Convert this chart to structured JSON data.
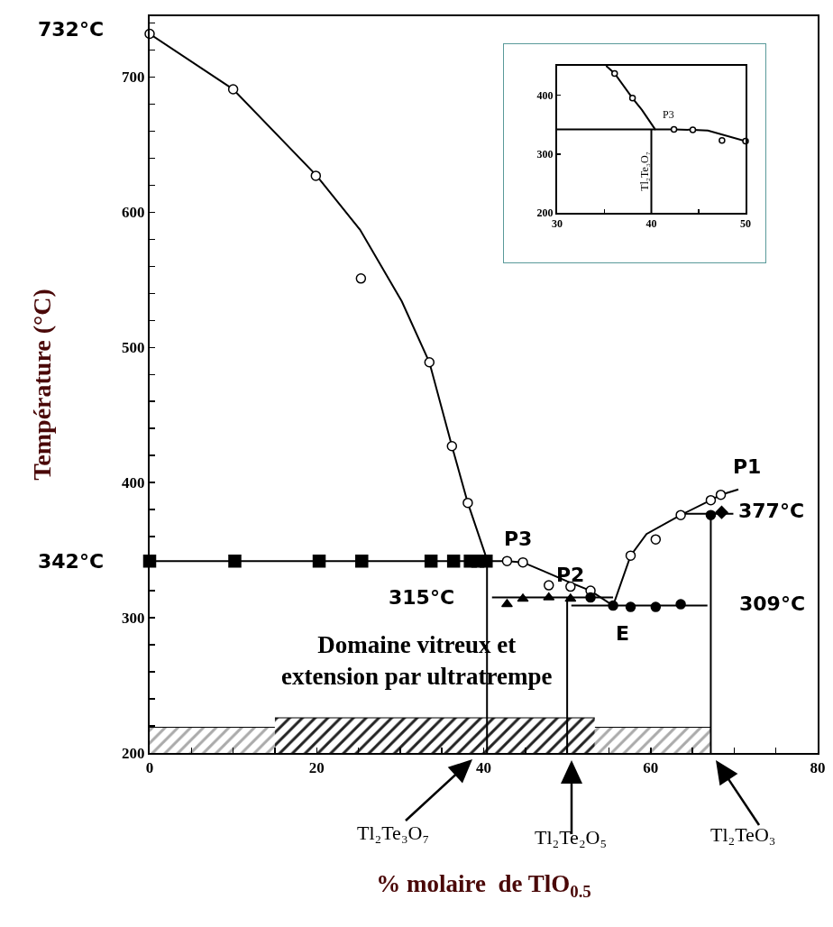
{
  "chart_data": [
    {
      "type": "line",
      "xlabel": "% molaire  de TlO$_{0.5}$",
      "ylabel": "Température (°C)",
      "xlim": [
        0,
        80
      ],
      "ylim": [
        200,
        745
      ],
      "xticks": [
        0,
        {
          "value": 5,
          "label": null
        },
        {
          "value": 10,
          "label": null
        },
        {
          "value": 15,
          "label": null
        },
        20,
        {
          "value": 25,
          "label": null
        },
        {
          "value": 30,
          "label": null
        },
        {
          "value": 35,
          "label": null
        },
        40,
        {
          "value": 45,
          "label": null
        },
        {
          "value": 50,
          "label": null
        },
        {
          "value": 55,
          "label": null
        },
        60,
        {
          "value": 65,
          "label": null
        },
        {
          "value": 70,
          "label": null
        },
        {
          "value": 75,
          "label": null
        },
        80
      ],
      "yticks": [
        200,
        {
          "value": 220,
          "label": null
        },
        {
          "value": 240,
          "label": null
        },
        {
          "value": 260,
          "label": null
        },
        {
          "value": 280,
          "label": null
        },
        300,
        {
          "value": 320,
          "label": null
        },
        {
          "value": 340,
          "label": null
        },
        {
          "value": 360,
          "label": null
        },
        {
          "value": 380,
          "label": null
        },
        400,
        {
          "value": 420,
          "label": null
        },
        {
          "value": 440,
          "label": null
        },
        {
          "value": 460,
          "label": null
        },
        {
          "value": 480,
          "label": null
        },
        500,
        {
          "value": 520,
          "label": null
        },
        {
          "value": 540,
          "label": null
        },
        {
          "value": 560,
          "label": null
        },
        {
          "value": 580,
          "label": null
        },
        600,
        {
          "value": 620,
          "label": null
        },
        {
          "value": 640,
          "label": null
        },
        {
          "value": 660,
          "label": null
        },
        {
          "value": 680,
          "label": null
        },
        700,
        {
          "value": 720,
          "label": null
        },
        {
          "value": 740,
          "label": null
        }
      ],
      "grid": false,
      "series": [
        {
          "type": "area",
          "color": "#aaaaaa",
          "x": [
            0,
            15
          ],
          "values": [
            219,
            219
          ]
        },
        {
          "type": "area",
          "color": "#aaaaaa",
          "x": [
            53.3,
            67.2
          ],
          "values": [
            219,
            219
          ]
        },
        {
          "type": "area",
          "color": "#222222",
          "x": [
            15,
            53.3
          ],
          "values": [
            226,
            226
          ]
        },
        {
          "type": "line",
          "color": "#000000",
          "marker": "none",
          "x": [
            0,
            10,
            20,
            25.2,
            30.2,
            33.5,
            36.2,
            38.1,
            40.4
          ],
          "values": [
            732,
            691,
            627,
            587,
            534,
            489,
            427,
            385,
            343
          ]
        },
        {
          "type": "line",
          "color": "#000000",
          "marker": "none",
          "x": [
            0,
            40.4
          ],
          "values": [
            342,
            342
          ]
        },
        {
          "type": "line",
          "color": "#000000",
          "marker": "none",
          "x": [
            40.4,
            42.8,
            44.7,
            47,
            50,
            52.8,
            55.5
          ],
          "values": [
            342,
            342,
            341,
            335,
            327,
            320,
            309
          ]
        },
        {
          "type": "line",
          "color": "#000000",
          "marker": "none",
          "x": [
            55.5,
            57.6,
            59.5,
            63.6,
            67.2,
            68.4,
            70.5
          ],
          "values": [
            309,
            346,
            362,
            376,
            387,
            391,
            395
          ]
        },
        {
          "type": "line",
          "color": "#000000",
          "marker": "none",
          "x": [
            41,
            55.5
          ],
          "values": [
            315,
            315
          ]
        },
        {
          "type": "line",
          "color": "#000000",
          "marker": "none",
          "x": [
            50.5,
            66.8
          ],
          "values": [
            309,
            309
          ]
        },
        {
          "type": "line",
          "color": "#000000",
          "marker": "none",
          "x": [
            63.4,
            69.9
          ],
          "values": [
            377,
            377
          ]
        },
        {
          "type": "line",
          "color": "#000000",
          "marker": "none",
          "x": [
            40.4,
            40.4
          ],
          "values": [
            342,
            200
          ]
        },
        {
          "type": "line",
          "color": "#000000",
          "marker": "none",
          "x": [
            50,
            50
          ],
          "values": [
            315,
            200
          ]
        },
        {
          "type": "line",
          "color": "#000000",
          "marker": "none",
          "x": [
            67.2,
            67.2
          ],
          "values": [
            377,
            200
          ]
        },
        {
          "type": "scatter",
          "color": "#ffffff",
          "marker": "circle",
          "x": [
            0,
            10,
            19.9,
            25.3,
            33.5,
            36.2,
            38.1
          ],
          "values": [
            732,
            691,
            627,
            551,
            489,
            427,
            385
          ]
        },
        {
          "type": "scatter",
          "color": "#000000",
          "marker": "square",
          "x": [
            0,
            10.2,
            20.3,
            25.4,
            33.7,
            36.4,
            38.4,
            39.3,
            40.3
          ],
          "values": [
            342,
            342,
            342,
            342,
            342,
            342,
            342,
            342,
            342
          ]
        },
        {
          "type": "scatter",
          "color": "#ffffff",
          "marker": "circle",
          "x": [
            42.8,
            44.7,
            47.8,
            50.4,
            52.8
          ],
          "values": [
            342,
            341,
            324,
            323,
            320
          ]
        },
        {
          "type": "scatter",
          "color": "#ffffff",
          "marker": "circle",
          "x": [
            57.6,
            60.6,
            63.6,
            67.2,
            68.4
          ],
          "values": [
            346,
            358,
            376,
            387,
            391
          ]
        },
        {
          "type": "scatter",
          "color": "#000000",
          "marker": "triangle",
          "x": [
            42.8,
            44.7,
            47.8,
            50.4
          ],
          "values": [
            310,
            314,
            315,
            314
          ]
        },
        {
          "type": "scatter",
          "color": "#000000",
          "marker": "circle",
          "x": [
            52.8,
            55.5,
            57.6,
            60.6,
            63.6
          ],
          "values": [
            315,
            309,
            308,
            308,
            310
          ]
        },
        {
          "type": "scatter",
          "color": "#000000",
          "marker": "circle",
          "x": [
            67.2
          ],
          "values": [
            376
          ]
        },
        {
          "type": "scatter",
          "color": "#000000",
          "marker": "diamond",
          "x": [
            68.5
          ],
          "values": [
            378
          ]
        }
      ],
      "annotations": [
        {
          "text": "732°C",
          "x": 0,
          "y": 732
        },
        {
          "text": "342°C",
          "x": 0,
          "y": 342
        },
        {
          "text": "315°C",
          "x": 41,
          "y": 315
        },
        {
          "text": "309°C",
          "x": 66.8,
          "y": 309
        },
        {
          "text": "377°C",
          "x": 68.5,
          "y": 378
        },
        {
          "text": "P1",
          "x": 68.4,
          "y": 391
        },
        {
          "text": "P2",
          "x": 50.4,
          "y": 323
        },
        {
          "text": "P3",
          "x": 42.8,
          "y": 342
        },
        {
          "text": "E",
          "x": 55.5,
          "y": 309
        },
        {
          "text": "Domaine vitreux et\nextension par ultratrempe",
          "x": 32,
          "y": 226
        },
        "Tl₂Te₃O₇",
        "Tl₂Te₂O₅",
        "Tl₂TeO₃"
      ]
    },
    {
      "type": "line",
      "xlim": [
        30,
        50
      ],
      "ylim": [
        200,
        450
      ],
      "xticks": [
        30,
        {
          "value": 35,
          "label": null
        },
        40,
        {
          "value": 45,
          "label": null
        },
        50
      ],
      "yticks": [
        200,
        300,
        400
      ],
      "grid": false,
      "series": [
        {
          "type": "line",
          "color": "#000000",
          "marker": "none",
          "x": [
            35.2,
            36.1,
            38,
            39,
            40.4,
            42.4,
            44.4,
            46,
            50
          ],
          "values": [
            450,
            437,
            395,
            375,
            342,
            342,
            341,
            340,
            322
          ]
        },
        {
          "type": "line",
          "color": "#000000",
          "marker": "none",
          "x": [
            30,
            40.4
          ],
          "values": [
            342,
            342
          ]
        },
        {
          "type": "line",
          "color": "#000000",
          "marker": "none",
          "x": [
            40,
            40
          ],
          "values": [
            342,
            200
          ]
        },
        {
          "type": "scatter",
          "color": "#ffffff",
          "marker": "circle",
          "x": [
            36.1,
            38,
            42.4,
            44.4,
            47.5,
            50
          ],
          "values": [
            437,
            395,
            342,
            341,
            323,
            322
          ]
        }
      ],
      "annotations": [
        {
          "text": "P3",
          "x": 40.4,
          "y": 342
        },
        {
          "text": "Tl₂Te₃O₇",
          "x": 40,
          "y": 270
        }
      ]
    }
  ]
}
